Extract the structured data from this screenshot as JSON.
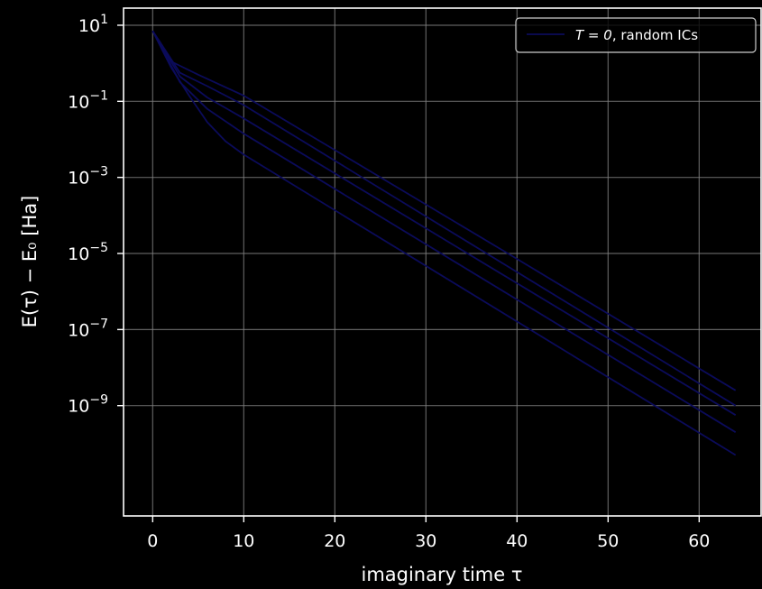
{
  "chart_data": {
    "type": "line",
    "title": "",
    "xlabel": "imaginary time τ",
    "ylabel": "E(τ) − E₀  [Ha]",
    "y_scale": "log",
    "xlim": [
      -3.2,
      66.8
    ],
    "ylim_log10": [
      -11.9,
      1.45
    ],
    "x_ticks": [
      0,
      10,
      20,
      30,
      40,
      50,
      60
    ],
    "y_ticks_exp": [
      1,
      -1,
      -3,
      -5,
      -7,
      -9
    ],
    "grid": true,
    "legend_position": "top-right",
    "legend_label_T": "T = 0",
    "legend_label_rest": ", random ICs",
    "line_color": "#0b0b5a",
    "series": [
      {
        "name": "T = 0, random ICs",
        "x": [
          0,
          2,
          5,
          10,
          39,
          64
        ],
        "y_log10": [
          0.85,
          0.05,
          -0.3,
          -0.85,
          -5.0,
          -8.6
        ]
      },
      {
        "name": "",
        "x": [
          0,
          3,
          6,
          10,
          64
        ],
        "y_log10": [
          0.85,
          -0.25,
          -0.6,
          -1.1,
          -9.0
        ]
      },
      {
        "name": "",
        "x": [
          0,
          3,
          6,
          10,
          64
        ],
        "y_log10": [
          0.85,
          -0.35,
          -0.9,
          -1.45,
          -9.25
        ]
      },
      {
        "name": "",
        "x": [
          0,
          3,
          6,
          10,
          64
        ],
        "y_log10": [
          0.85,
          -0.5,
          -1.2,
          -1.85,
          -9.7
        ]
      },
      {
        "name": "",
        "x": [
          0,
          2,
          4,
          6,
          8,
          10,
          64
        ],
        "y_log10": [
          0.85,
          -0.1,
          -0.85,
          -1.55,
          -2.05,
          -2.4,
          -10.3
        ]
      }
    ]
  }
}
